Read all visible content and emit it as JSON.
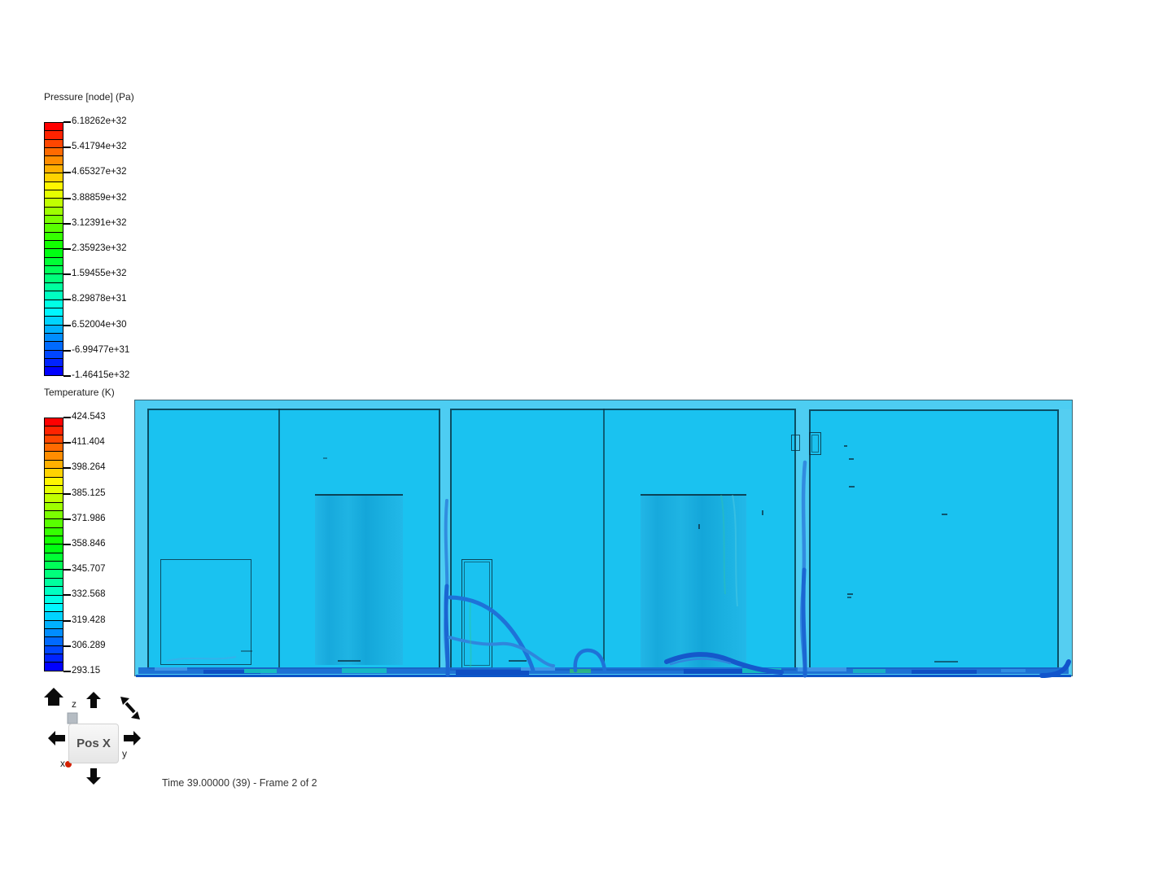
{
  "window": {
    "background": "#ffffff"
  },
  "legends": [
    {
      "id": "pressure",
      "title": "Pressure [node] (Pa)",
      "unit": "Pa",
      "cells": 30,
      "hue_start": 0,
      "hue_end": 240,
      "labels": [
        "6.18262e+32",
        "5.41794e+32",
        "4.65327e+32",
        "3.88859e+32",
        "3.12391e+32",
        "2.35923e+32",
        "1.59455e+32",
        "8.29878e+31",
        "6.52004e+30",
        "-6.99477e+31",
        "-1.46415e+32"
      ]
    },
    {
      "id": "temperature",
      "title": "Temperature (K)",
      "unit": "K",
      "cells": 30,
      "hue_start": 0,
      "hue_end": 240,
      "labels": [
        "424.543",
        "411.404",
        "398.264",
        "385.125",
        "371.986",
        "358.846",
        "345.707",
        "332.568",
        "319.428",
        "306.289",
        "293.15"
      ]
    }
  ],
  "viewport": {
    "description": "CFD cross-section of three container rooms, temperature surface with pressure streamlines",
    "colors": {
      "surface": "#1ac2f0",
      "outer_shell": "#4dcdf2",
      "equipment": "#19aee0",
      "outline": "#0d3a4d",
      "streamline": "#2d82dc",
      "streamline_dark": "#145acd",
      "floor": "#1a68d2",
      "floor_teal": "#14c9c0"
    }
  },
  "nav_widget": {
    "button_label": "Pos X",
    "axes": {
      "x": "x",
      "y": "y",
      "z": "z"
    }
  },
  "status_bar": {
    "time_label": "Time 39.00000 (39) - Frame 2 of 2"
  }
}
